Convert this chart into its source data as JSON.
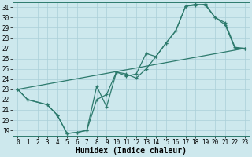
{
  "xlabel": "Humidex (Indice chaleur)",
  "xlim": [
    -0.5,
    23.5
  ],
  "ylim": [
    18.5,
    31.5
  ],
  "xticks": [
    0,
    1,
    2,
    3,
    4,
    5,
    6,
    7,
    8,
    9,
    10,
    11,
    12,
    13,
    14,
    15,
    16,
    17,
    18,
    19,
    20,
    21,
    22,
    23
  ],
  "yticks": [
    19,
    20,
    21,
    22,
    23,
    24,
    25,
    26,
    27,
    28,
    29,
    30,
    31
  ],
  "bg_color": "#cde8ed",
  "line_color": "#2d7a6d",
  "grid_color": "#aacfd8",
  "curve1_x": [
    0,
    1,
    3,
    4,
    5,
    6,
    7,
    8,
    9,
    10,
    11,
    12,
    13,
    14,
    15,
    16,
    17,
    18,
    19,
    20,
    21,
    22,
    23
  ],
  "curve1_y": [
    23,
    22,
    21.5,
    20.5,
    18.7,
    18.8,
    19.0,
    23.3,
    21.3,
    24.7,
    24.5,
    24.1,
    25.0,
    26.2,
    27.5,
    28.7,
    31.1,
    31.2,
    31.3,
    30.0,
    29.5,
    27.1,
    27.0
  ],
  "curve2_x": [
    0,
    1,
    3,
    4,
    5,
    6,
    7,
    8,
    9,
    10,
    11,
    12,
    13,
    14,
    15,
    16,
    17,
    18,
    19,
    20,
    21,
    22,
    23
  ],
  "curve2_y": [
    23,
    22,
    21.5,
    20.5,
    18.7,
    18.8,
    19.0,
    22.0,
    22.5,
    24.7,
    24.3,
    24.5,
    26.5,
    26.2,
    27.5,
    28.7,
    31.1,
    31.3,
    31.2,
    30.0,
    29.3,
    27.0,
    27.0
  ],
  "line3_x": [
    0,
    23
  ],
  "line3_y": [
    23.0,
    27.0
  ],
  "tick_fontsize": 5.5,
  "label_fontsize": 7.0
}
